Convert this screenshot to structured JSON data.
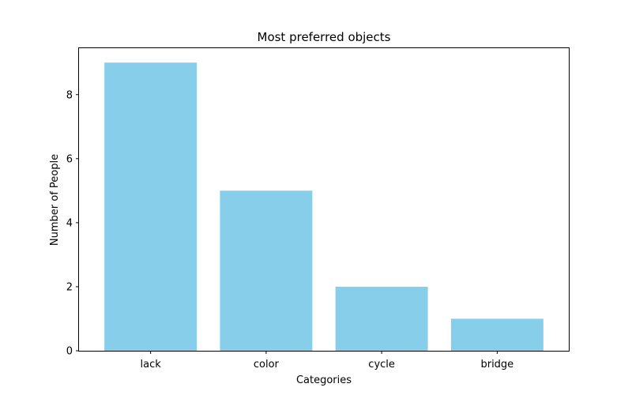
{
  "chart_data": {
    "type": "bar",
    "title": "Most preferred objects",
    "xlabel": "Categories",
    "ylabel": "Number of People",
    "categories": [
      "lack",
      "color",
      "cycle",
      "bridge"
    ],
    "values": [
      9,
      5,
      2,
      1
    ],
    "ylim": [
      0,
      9.45
    ],
    "yticks": [
      0,
      2,
      4,
      6,
      8
    ],
    "grid": false,
    "bar_color": "#87CEEB"
  }
}
